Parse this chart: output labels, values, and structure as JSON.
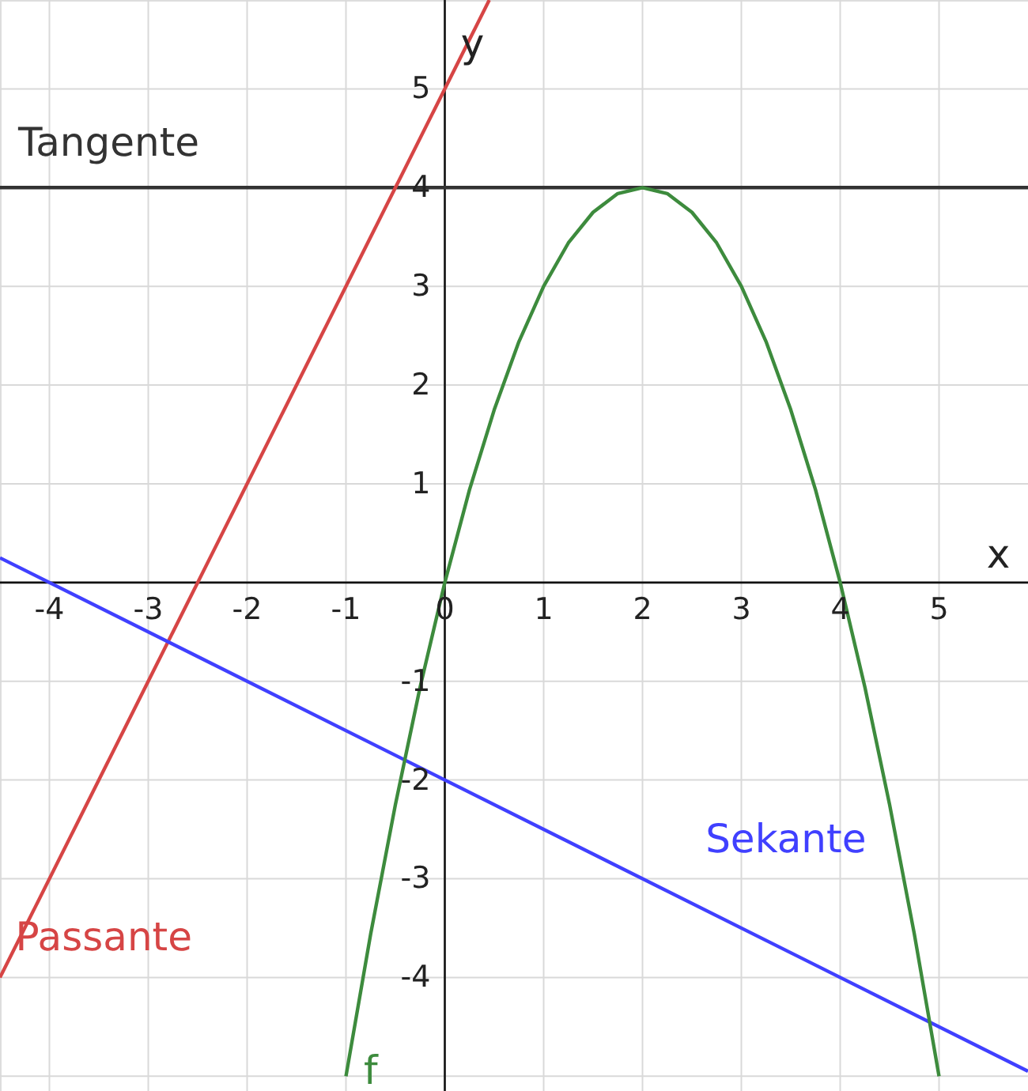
{
  "chart_data": {
    "type": "line",
    "xlabel": "x",
    "ylabel": "y",
    "xlim": [
      -4.5,
      5.9
    ],
    "ylim": [
      -5.15,
      5.9
    ],
    "xticks": [
      -4,
      -3,
      -2,
      -1,
      0,
      1,
      2,
      3,
      4,
      5
    ],
    "yticks": [
      {
        "value": -5,
        "label": null
      },
      -4,
      -3,
      -2,
      -1,
      {
        "value": 0,
        "label": null
      },
      1,
      2,
      3,
      4,
      5
    ],
    "grid": true,
    "marker": "none",
    "line_style": "solid",
    "series": [
      {
        "name": "Tangente",
        "color": "#333333",
        "x": [
          -4.5,
          5.9
        ],
        "values": [
          4,
          4
        ]
      },
      {
        "name": "Passante",
        "color": "#d64545",
        "x": [
          -4.5,
          0.45
        ],
        "values": [
          -4,
          5.9
        ]
      },
      {
        "name": "Sekante",
        "color": "#4040ff",
        "x": [
          -4.5,
          5.9
        ],
        "values": [
          0.25,
          -4.95
        ]
      },
      {
        "name": "f",
        "color": "#3d8b3d",
        "x": [
          -1,
          -0.75,
          -0.5,
          -0.25,
          0,
          0.25,
          0.5,
          0.75,
          1,
          1.25,
          1.5,
          1.75,
          2,
          2.25,
          2.5,
          2.75,
          3,
          3.25,
          3.5,
          3.75,
          4,
          4.25,
          4.5,
          4.75,
          5
        ],
        "values": [
          -5,
          -3.56,
          -2.25,
          -1.06,
          0,
          0.94,
          1.75,
          2.44,
          3,
          3.44,
          3.75,
          3.94,
          4,
          3.94,
          3.75,
          3.44,
          3,
          2.44,
          1.75,
          0.94,
          0,
          -1.06,
          -2.25,
          -3.56,
          -5
        ]
      }
    ]
  }
}
